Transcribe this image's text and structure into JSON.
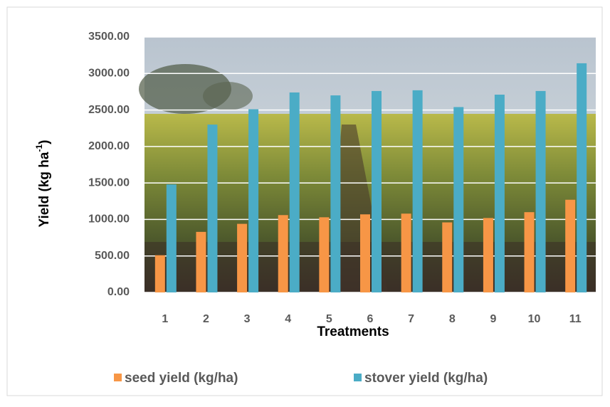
{
  "chart_data": {
    "type": "bar",
    "x_label": "Treatments",
    "y_label": "Yield (kg ha",
    "y_label_sup": "-1",
    "y_label_end": ")",
    "categories": [
      "1",
      "2",
      "3",
      "4",
      "5",
      "6",
      "7",
      "8",
      "9",
      "10",
      "11"
    ],
    "series": [
      {
        "name": "seed yield (kg/ha)",
        "color": "#f79646",
        "values": [
          510,
          830,
          940,
          1060,
          1030,
          1070,
          1080,
          960,
          1020,
          1100,
          1270
        ]
      },
      {
        "name": "stover yield (kg/ha)",
        "color": "#4bacc6",
        "values": [
          1480,
          2300,
          2510,
          2740,
          2700,
          2760,
          2770,
          2540,
          2710,
          2760,
          3140
        ]
      }
    ],
    "ylim": [
      0,
      3500
    ],
    "yticks": [
      {
        "value": 0,
        "label": "0.00"
      },
      {
        "value": 500,
        "label": "500.00"
      },
      {
        "value": 1000,
        "label": "1000.00"
      },
      {
        "value": 1500,
        "label": "1500.00"
      },
      {
        "value": 2000,
        "label": "2000.00"
      },
      {
        "value": 2500,
        "label": "2500.00"
      },
      {
        "value": 3000,
        "label": "3000.00"
      },
      {
        "value": 3500,
        "label": "3500.00"
      }
    ],
    "grid": true,
    "legend": "bottom"
  }
}
